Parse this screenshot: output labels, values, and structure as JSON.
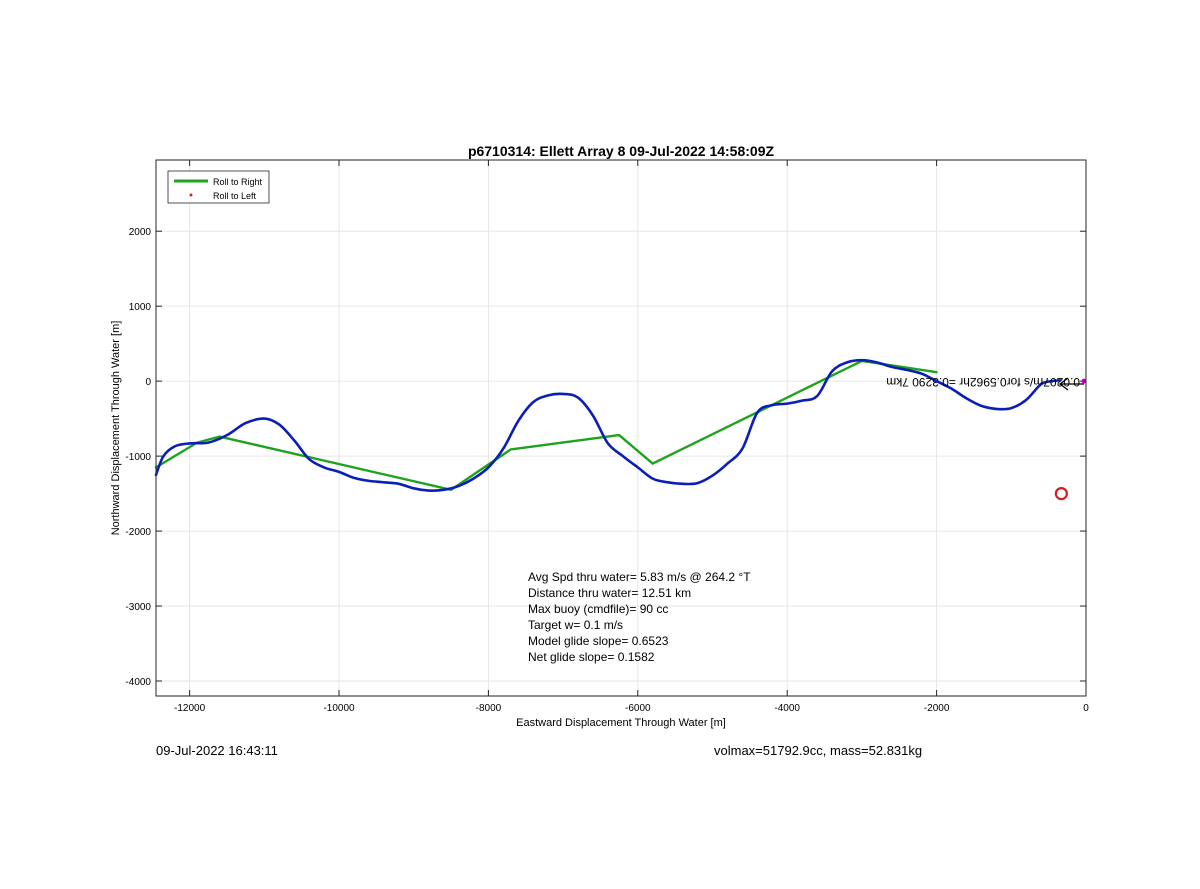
{
  "chart_data": {
    "type": "line",
    "title": "p6710314: Ellett Array 8 09-Jul-2022 14:58:09Z",
    "xlabel": "Eastward Displacement Through Water [m]",
    "ylabel": "Northward Displacement Through Water [m]",
    "xlim": [
      -12450,
      0
    ],
    "ylim": [
      -4200,
      2950
    ],
    "xticks": [
      -12000,
      -10000,
      -8000,
      -6000,
      -4000,
      -2000,
      0
    ],
    "yticks": [
      -4000,
      -3000,
      -2000,
      -1000,
      0,
      1000,
      2000
    ],
    "grid": true,
    "legend": {
      "placement": "top-left",
      "entries": [
        {
          "label": "Roll to Right",
          "color": "#1fa31f",
          "marker": "line"
        },
        {
          "label": "Roll to Left",
          "color": "#d42020",
          "marker": "dot"
        }
      ]
    },
    "series": [
      {
        "color": "#1fa31f",
        "x": [
          -12450,
          -11900,
          -11600,
          -8500,
          -7700,
          -6250,
          -5800,
          -3000,
          -2000
        ],
        "y": [
          -1150,
          -820,
          -740,
          -1450,
          -910,
          -720,
          -1100,
          270,
          120
        ]
      },
      {
        "color": "#0a1fb8",
        "x": [
          -12450,
          -12350,
          -12200,
          -12000,
          -11750,
          -11500,
          -11250,
          -11000,
          -10800,
          -10600,
          -10400,
          -10200,
          -10000,
          -9800,
          -9600,
          -9400,
          -9200,
          -9000,
          -8800,
          -8600,
          -8400,
          -8200,
          -8000,
          -7800,
          -7600,
          -7400,
          -7200,
          -7000,
          -6800,
          -6600,
          -6400,
          -6200,
          -6000,
          -5800,
          -5600,
          -5400,
          -5200,
          -5000,
          -4800,
          -4600,
          -4400,
          -4200,
          -4000,
          -3800,
          -3600,
          -3400,
          -3200,
          -3000,
          -2800,
          -2600,
          -2400,
          -2200,
          -2000,
          -1800,
          -1600,
          -1400,
          -1200,
          -1000,
          -800,
          -600,
          -450,
          -350
        ],
        "y": [
          -1250,
          -1000,
          -870,
          -830,
          -820,
          -720,
          -560,
          -500,
          -580,
          -790,
          -1040,
          -1150,
          -1210,
          -1290,
          -1330,
          -1350,
          -1370,
          -1430,
          -1460,
          -1450,
          -1400,
          -1300,
          -1150,
          -900,
          -530,
          -280,
          -190,
          -170,
          -220,
          -460,
          -830,
          -1000,
          -1150,
          -1300,
          -1350,
          -1370,
          -1360,
          -1260,
          -1100,
          -900,
          -420,
          -320,
          -300,
          -260,
          -200,
          130,
          250,
          280,
          250,
          190,
          150,
          100,
          0,
          -100,
          -230,
          -330,
          -370,
          -360,
          -250,
          -40,
          0,
          10
        ]
      }
    ],
    "markers": {
      "circle": {
        "x": -330,
        "y": -1500,
        "color": "#d42020"
      },
      "end_dot": {
        "x": 0,
        "y": 0,
        "color": "#c000c0"
      }
    },
    "annotation_lines": [
      "Avg Spd thru water=  5.83 m/s @ 264.2 °T",
      "Distance thru water= 12.51 km",
      "Max buoy (cmdfile)= 90 cc",
      "Target w= 0.1 m/s",
      "Model glide slope= 0.6523",
      "Net glide slope= 0.1582"
    ],
    "current_label": "0.0207m/s for0.5962hr =0.3290 7km",
    "current_label_rotation_deg": 180
  },
  "footer": {
    "date": "09-Jul-2022 16:43:11",
    "volinfo": "volmax=51792.9cc, mass=52.831kg"
  }
}
